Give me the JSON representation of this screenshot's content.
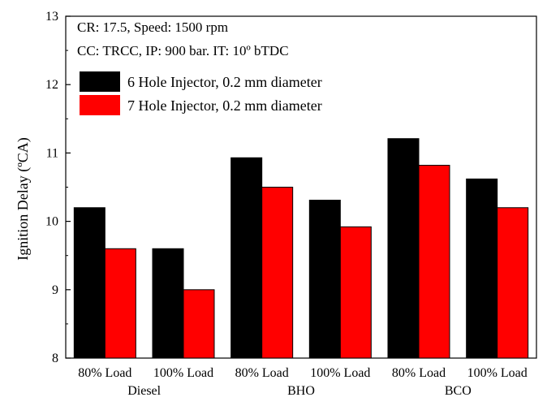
{
  "chart_data": {
    "type": "bar",
    "categories": [
      "80% Load",
      "100% Load",
      "80% Load",
      "100% Load",
      "80% Load",
      "100% Load"
    ],
    "groups": [
      "Diesel",
      "BHO",
      "BCO"
    ],
    "series": [
      {
        "name": "6 Hole Injector, 0.2 mm diameter",
        "color": "#000000",
        "values": [
          10.2,
          9.6,
          10.93,
          10.31,
          11.21,
          10.62
        ]
      },
      {
        "name": "7 Hole Injector, 0.2 mm diameter",
        "color": "#ff0000",
        "values": [
          9.6,
          9.0,
          10.5,
          9.92,
          10.82,
          10.2
        ]
      }
    ],
    "annotations": [
      "CR: 17.5, Speed: 1500 rpm",
      "CC: TRCC, IP: 900 bar. IT: 10º bTDC"
    ],
    "ylabel": "Ignition Delay (ºCA)",
    "xlabel": "",
    "ylim": [
      8,
      13
    ],
    "yticks": [
      "8",
      "9",
      "10",
      "11",
      "12",
      "13"
    ],
    "grid": false,
    "legend_position": "top-left"
  }
}
